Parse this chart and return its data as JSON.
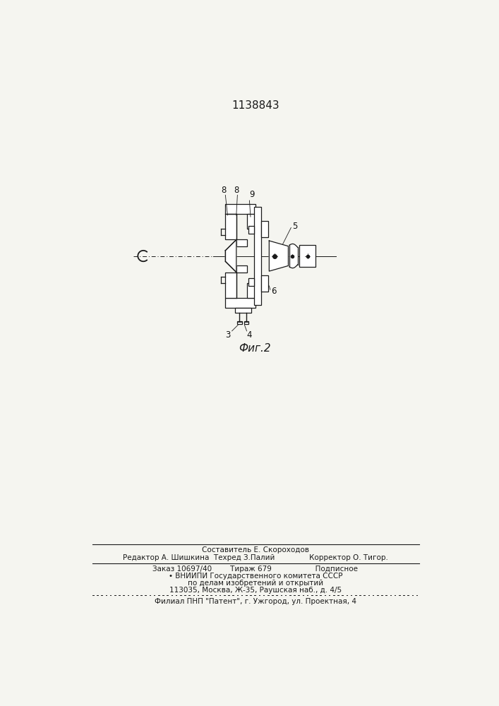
{
  "title": "1138843",
  "fig_label": "Фиг.2",
  "background_color": "#f5f5f0",
  "text_color": "#1a1a1a",
  "footer_line1": "Составитель Е. Скороходов",
  "footer_line2": "Редактор А. Шишкина  Техред З.Палий               Корректор О. Тигор.",
  "footer_line3": "Заказ 10697/40        Тираж 679                   Подписное",
  "footer_line4": "• ВНИИПИ Государственного комитета СССР",
  "footer_line5": "по делам изобретений и открытий",
  "footer_line6": "113035, Москва, Ж-35, Раушская наб., д. 4/5",
  "footer_line7": "Филиал ПНП \"Патент\", г. Ужгород, ул. Проектная, 4"
}
